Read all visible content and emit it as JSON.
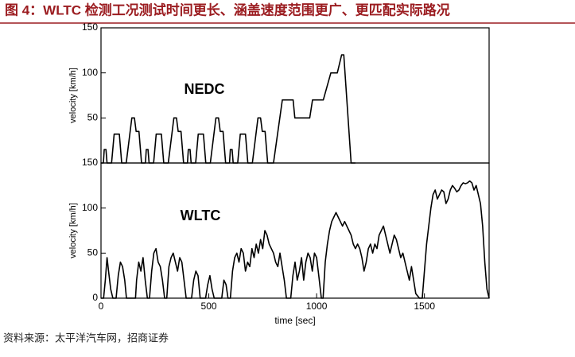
{
  "title": "图 4：WLTC 检测工况测试时间更长、涵盖速度范围更广、更匹配实际路况",
  "source": "资料来源：太平洋汽车网，招商证券",
  "chart_data": [
    {
      "type": "line",
      "annotation": "NEDC",
      "ylabel": "velocity [km/h]",
      "xlim": [
        0,
        1800
      ],
      "ylim": [
        0,
        150
      ],
      "yticks": [
        50,
        100,
        150
      ],
      "series": [
        {
          "color": "#000000",
          "x": [
            0,
            11,
            15,
            23,
            28,
            49,
            61,
            85,
            96,
            117,
            143,
            155,
            163,
            176,
            188,
            195,
            206,
            210,
            218,
            223,
            244,
            256,
            280,
            291,
            312,
            338,
            350,
            358,
            371,
            383,
            390,
            401,
            405,
            413,
            418,
            439,
            451,
            475,
            486,
            507,
            533,
            545,
            553,
            566,
            578,
            585,
            596,
            600,
            608,
            613,
            634,
            646,
            670,
            681,
            702,
            728,
            740,
            748,
            761,
            773,
            800,
            841,
            891,
            899,
            968,
            981,
            1031,
            1066,
            1096,
            1116,
            1126,
            1160,
            1180
          ],
          "values": [
            0,
            0,
            15,
            15,
            0,
            0,
            32,
            32,
            0,
            0,
            50,
            50,
            35,
            35,
            0,
            0,
            0,
            15,
            15,
            0,
            0,
            32,
            32,
            0,
            0,
            50,
            50,
            35,
            35,
            0,
            0,
            0,
            15,
            15,
            0,
            0,
            32,
            32,
            0,
            0,
            50,
            50,
            35,
            35,
            0,
            0,
            0,
            15,
            15,
            0,
            0,
            32,
            32,
            0,
            0,
            50,
            50,
            35,
            35,
            0,
            0,
            70,
            70,
            50,
            50,
            70,
            70,
            100,
            100,
            120,
            120,
            0,
            0
          ]
        }
      ]
    },
    {
      "type": "line",
      "annotation": "WLTC",
      "ylabel": "velocity [km/h]",
      "xlabel": "time [sec]",
      "xlim": [
        0,
        1800
      ],
      "ylim": [
        0,
        150
      ],
      "xticks": [
        0,
        500,
        1000,
        1500
      ],
      "yticks": [
        0,
        50,
        100,
        150
      ],
      "series": [
        {
          "color": "#000000",
          "x": [
            0,
            12,
            20,
            28,
            35,
            45,
            55,
            70,
            80,
            90,
            100,
            110,
            118,
            160,
            165,
            175,
            185,
            195,
            205,
            215,
            225,
            235,
            245,
            255,
            265,
            275,
            285,
            295,
            305,
            315,
            325,
            335,
            345,
            355,
            365,
            375,
            385,
            395,
            420,
            430,
            440,
            450,
            460,
            485,
            495,
            505,
            515,
            525,
            560,
            570,
            580,
            589,
            600,
            610,
            620,
            630,
            640,
            650,
            660,
            670,
            680,
            690,
            700,
            710,
            720,
            730,
            740,
            750,
            760,
            770,
            780,
            790,
            800,
            810,
            820,
            830,
            840,
            850,
            860,
            870,
            880,
            890,
            900,
            910,
            920,
            930,
            940,
            950,
            960,
            970,
            980,
            990,
            1000,
            1010,
            1022,
            1030,
            1040,
            1050,
            1060,
            1070,
            1080,
            1090,
            1100,
            1110,
            1120,
            1130,
            1140,
            1150,
            1160,
            1170,
            1180,
            1190,
            1200,
            1210,
            1220,
            1230,
            1240,
            1250,
            1260,
            1270,
            1280,
            1290,
            1300,
            1310,
            1320,
            1330,
            1340,
            1350,
            1360,
            1370,
            1380,
            1390,
            1400,
            1410,
            1420,
            1430,
            1440,
            1450,
            1460,
            1477,
            1490,
            1500,
            1510,
            1520,
            1530,
            1540,
            1550,
            1560,
            1570,
            1580,
            1590,
            1600,
            1610,
            1620,
            1630,
            1640,
            1650,
            1660,
            1670,
            1680,
            1690,
            1700,
            1710,
            1720,
            1730,
            1740,
            1750,
            1760,
            1770,
            1780,
            1790,
            1800
          ],
          "values": [
            0,
            0,
            20,
            45,
            30,
            10,
            0,
            0,
            25,
            40,
            35,
            20,
            0,
            0,
            20,
            40,
            30,
            45,
            20,
            0,
            0,
            30,
            50,
            55,
            40,
            35,
            20,
            0,
            0,
            35,
            45,
            50,
            40,
            30,
            45,
            40,
            20,
            0,
            0,
            20,
            30,
            25,
            0,
            0,
            15,
            25,
            10,
            0,
            0,
            20,
            15,
            0,
            0,
            30,
            45,
            50,
            40,
            55,
            50,
            30,
            40,
            35,
            55,
            45,
            60,
            50,
            65,
            55,
            75,
            70,
            60,
            55,
            50,
            40,
            35,
            50,
            35,
            20,
            0,
            0,
            0,
            25,
            40,
            20,
            30,
            45,
            20,
            40,
            50,
            45,
            30,
            50,
            45,
            25,
            0,
            0,
            40,
            60,
            75,
            85,
            90,
            95,
            90,
            85,
            80,
            85,
            80,
            75,
            70,
            60,
            55,
            60,
            55,
            45,
            30,
            40,
            55,
            60,
            50,
            60,
            55,
            70,
            75,
            80,
            70,
            60,
            50,
            60,
            70,
            65,
            55,
            45,
            50,
            40,
            30,
            20,
            35,
            20,
            5,
            0,
            0,
            30,
            60,
            80,
            100,
            115,
            120,
            110,
            115,
            120,
            118,
            105,
            110,
            120,
            125,
            122,
            118,
            120,
            125,
            128,
            127,
            128,
            130,
            128,
            120,
            125,
            115,
            105,
            80,
            40,
            10,
            0
          ]
        }
      ]
    }
  ]
}
